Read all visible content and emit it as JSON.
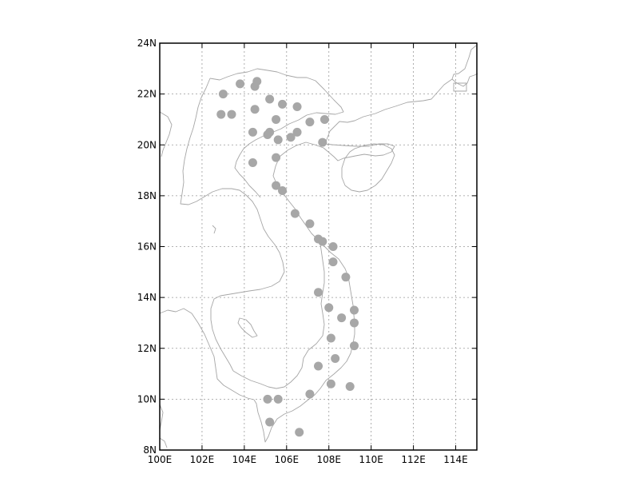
{
  "map": {
    "lon_range": [
      100,
      115
    ],
    "lat_range": [
      8,
      24
    ],
    "lon_ticks": [
      {
        "value": 100,
        "label": "100E"
      },
      {
        "value": 102,
        "label": "102E"
      },
      {
        "value": 104,
        "label": "104E"
      },
      {
        "value": 106,
        "label": "106E"
      },
      {
        "value": 108,
        "label": "108E"
      },
      {
        "value": 110,
        "label": "110E"
      },
      {
        "value": 112,
        "label": "112E"
      },
      {
        "value": 114,
        "label": "114E"
      }
    ],
    "lat_ticks": [
      {
        "value": 8,
        "label": "8N"
      },
      {
        "value": 10,
        "label": "10N"
      },
      {
        "value": 12,
        "label": "12N"
      },
      {
        "value": 14,
        "label": "14N"
      },
      {
        "value": 16,
        "label": "16N"
      },
      {
        "value": 18,
        "label": "18N"
      },
      {
        "value": 20,
        "label": "20N"
      },
      {
        "value": 22,
        "label": "22N"
      },
      {
        "value": 24,
        "label": "24N"
      }
    ],
    "gridlines": true,
    "station_color": "#a7a7a7",
    "coastline_color": "#a6a6a6",
    "stations": [
      {
        "lon": 103.0,
        "lat": 22.0
      },
      {
        "lon": 103.8,
        "lat": 22.4
      },
      {
        "lon": 104.5,
        "lat": 22.3
      },
      {
        "lon": 104.6,
        "lat": 22.5
      },
      {
        "lon": 105.2,
        "lat": 21.8
      },
      {
        "lon": 105.8,
        "lat": 21.6
      },
      {
        "lon": 106.5,
        "lat": 21.5
      },
      {
        "lon": 104.5,
        "lat": 21.4
      },
      {
        "lon": 102.9,
        "lat": 21.2
      },
      {
        "lon": 103.4,
        "lat": 21.2
      },
      {
        "lon": 105.5,
        "lat": 21.0
      },
      {
        "lon": 107.1,
        "lat": 20.9
      },
      {
        "lon": 107.8,
        "lat": 21.0
      },
      {
        "lon": 104.4,
        "lat": 20.5
      },
      {
        "lon": 105.1,
        "lat": 20.4
      },
      {
        "lon": 105.2,
        "lat": 20.5
      },
      {
        "lon": 106.2,
        "lat": 20.3
      },
      {
        "lon": 106.5,
        "lat": 20.5
      },
      {
        "lon": 105.6,
        "lat": 20.2
      },
      {
        "lon": 107.7,
        "lat": 20.1
      },
      {
        "lon": 104.4,
        "lat": 19.3
      },
      {
        "lon": 105.5,
        "lat": 19.5
      },
      {
        "lon": 105.5,
        "lat": 18.4
      },
      {
        "lon": 105.8,
        "lat": 18.2
      },
      {
        "lon": 106.4,
        "lat": 17.3
      },
      {
        "lon": 107.1,
        "lat": 16.9
      },
      {
        "lon": 107.5,
        "lat": 16.3
      },
      {
        "lon": 107.7,
        "lat": 16.2
      },
      {
        "lon": 108.2,
        "lat": 16.0
      },
      {
        "lon": 108.2,
        "lat": 15.4
      },
      {
        "lon": 108.8,
        "lat": 14.8
      },
      {
        "lon": 107.5,
        "lat": 14.2
      },
      {
        "lon": 108.0,
        "lat": 13.6
      },
      {
        "lon": 109.2,
        "lat": 13.5
      },
      {
        "lon": 108.6,
        "lat": 13.2
      },
      {
        "lon": 109.2,
        "lat": 13.0
      },
      {
        "lon": 108.1,
        "lat": 12.4
      },
      {
        "lon": 109.2,
        "lat": 12.1
      },
      {
        "lon": 108.3,
        "lat": 11.6
      },
      {
        "lon": 107.5,
        "lat": 11.3
      },
      {
        "lon": 107.1,
        "lat": 10.2
      },
      {
        "lon": 108.1,
        "lat": 10.6
      },
      {
        "lon": 109.0,
        "lat": 10.5
      },
      {
        "lon": 105.1,
        "lat": 10.0
      },
      {
        "lon": 105.6,
        "lat": 10.0
      },
      {
        "lon": 105.2,
        "lat": 9.1
      },
      {
        "lon": 106.6,
        "lat": 8.7
      }
    ]
  }
}
